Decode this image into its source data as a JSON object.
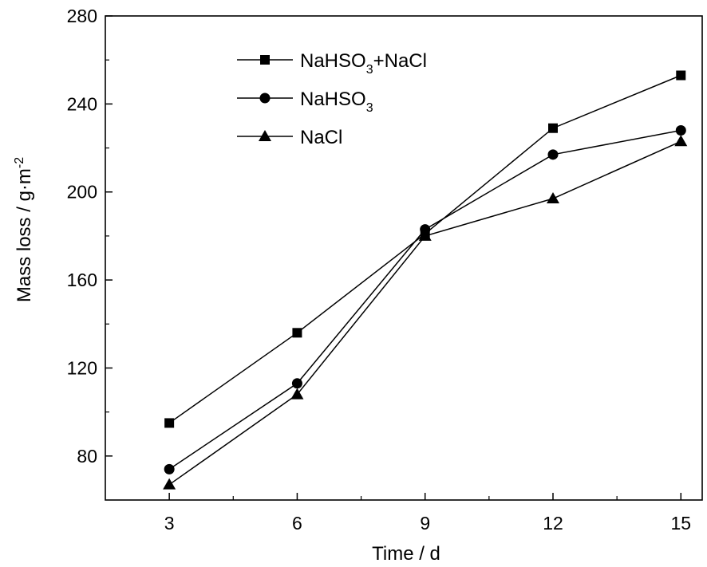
{
  "chart_data": {
    "type": "line",
    "x": [
      3,
      6,
      9,
      12,
      15
    ],
    "xlabel": "Time / d",
    "ylabel": "Mass loss / g·m",
    "ylabel_superscript": "-2",
    "xlim": [
      1.5,
      15.5
    ],
    "ylim": [
      60,
      280
    ],
    "xticks": [
      3,
      6,
      9,
      12,
      15
    ],
    "yticks": [
      80,
      120,
      160,
      200,
      240,
      280
    ],
    "grid": false,
    "legend_position": "top-center",
    "series": [
      {
        "name": "NaHSO3+NaCl",
        "name_base": "NaHSO",
        "name_sub": "3",
        "name_rest": "+NaCl",
        "marker": "square",
        "values": [
          95,
          136,
          181,
          229,
          253
        ]
      },
      {
        "name": "NaHSO3",
        "name_base": "NaHSO",
        "name_sub": "3",
        "name_rest": "",
        "marker": "circle",
        "values": [
          74,
          113,
          183,
          217,
          228
        ]
      },
      {
        "name": "NaCl",
        "name_base": "NaCl",
        "name_sub": "",
        "name_rest": "",
        "marker": "triangle",
        "values": [
          67,
          108,
          180,
          197,
          223
        ]
      }
    ]
  }
}
